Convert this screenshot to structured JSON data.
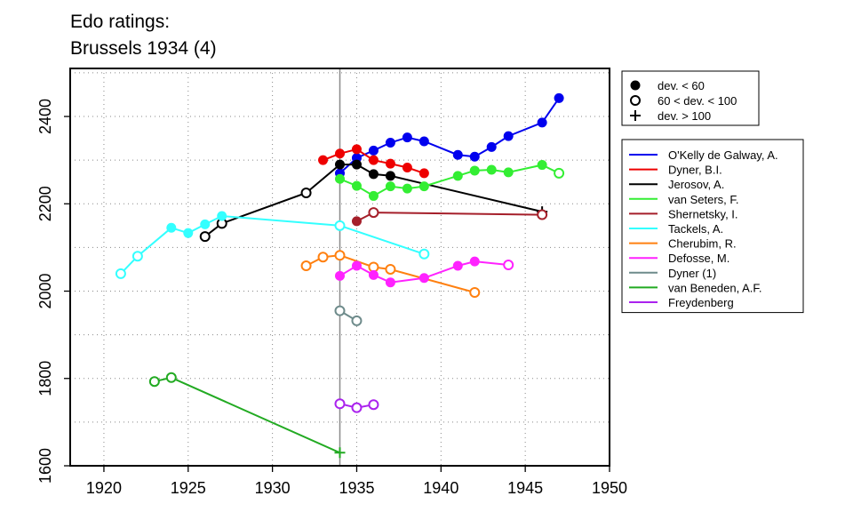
{
  "chart_data": {
    "type": "line",
    "title": "Edo ratings:",
    "subtitle": "Brussels 1934 (4)",
    "xlabel": "",
    "ylabel": "",
    "xlim": [
      1918,
      1950
    ],
    "ylim": [
      1600,
      2510
    ],
    "x_ticks": [
      1920,
      1925,
      1930,
      1935,
      1940,
      1945,
      1950
    ],
    "y_ticks": [
      1600,
      1800,
      2000,
      2200,
      2400
    ],
    "grid": "dotted",
    "event_year": 1934,
    "marker_legend": [
      {
        "marker": "filled",
        "label": "dev. < 60"
      },
      {
        "marker": "open",
        "label": "60 < dev. < 100"
      },
      {
        "marker": "plus",
        "label": "dev. > 100"
      }
    ],
    "series": [
      {
        "name": "O'Kelly de Galway, A.",
        "color": "#0000ee",
        "x": [
          1934,
          1935,
          1936,
          1937,
          1938,
          1939,
          1941,
          1942,
          1943,
          1944,
          1946,
          1947
        ],
        "y": [
          2270,
          2305,
          2322,
          2340,
          2352,
          2343,
          2312,
          2308,
          2330,
          2355,
          2386,
          2442
        ],
        "m": [
          "f",
          "f",
          "f",
          "f",
          "f",
          "f",
          "f",
          "f",
          "f",
          "f",
          "f",
          "f"
        ]
      },
      {
        "name": "Dyner, B.I.",
        "color": "#ee0000",
        "x": [
          1933,
          1934,
          1935,
          1936,
          1937,
          1938,
          1939
        ],
        "y": [
          2300,
          2315,
          2325,
          2300,
          2292,
          2283,
          2270
        ],
        "m": [
          "f",
          "f",
          "f",
          "f",
          "f",
          "f",
          "f"
        ]
      },
      {
        "name": "Jerosov, A.",
        "color": "#000000",
        "x": [
          1926,
          1927,
          1932,
          1934,
          1935,
          1936,
          1937,
          1946
        ],
        "y": [
          2125,
          2155,
          2225,
          2290,
          2290,
          2268,
          2264,
          2182
        ],
        "m": [
          "o",
          "o",
          "o",
          "f",
          "f",
          "f",
          "f",
          "p"
        ]
      },
      {
        "name": "van Seters, F.",
        "color": "#33ee33",
        "x": [
          1934,
          1935,
          1936,
          1937,
          1938,
          1939,
          1941,
          1942,
          1943,
          1944,
          1946,
          1947
        ],
        "y": [
          2257,
          2241,
          2218,
          2240,
          2235,
          2240,
          2264,
          2276,
          2278,
          2272,
          2289,
          2270
        ],
        "m": [
          "f",
          "f",
          "f",
          "f",
          "f",
          "f",
          "f",
          "f",
          "f",
          "f",
          "f",
          "o"
        ]
      },
      {
        "name": "Shernetsky, I.",
        "color": "#a51f2a",
        "x": [
          1935,
          1936,
          1946
        ],
        "y": [
          2160,
          2180,
          2175
        ],
        "m": [
          "f",
          "o",
          "o"
        ]
      },
      {
        "name": "Tackels, A.",
        "color": "#33ffff",
        "x": [
          1921,
          1922,
          1924,
          1925,
          1926,
          1927,
          1934,
          1939
        ],
        "y": [
          2040,
          2080,
          2145,
          2133,
          2153,
          2172,
          2150,
          2085
        ],
        "m": [
          "o",
          "o",
          "f",
          "f",
          "f",
          "f",
          "o",
          "o"
        ]
      },
      {
        "name": "Cherubim, R.",
        "color": "#ff8010",
        "x": [
          1932,
          1933,
          1934,
          1936,
          1937,
          1942
        ],
        "y": [
          2058,
          2078,
          2082,
          2055,
          2050,
          1997
        ],
        "m": [
          "o",
          "o",
          "o",
          "o",
          "o",
          "o"
        ]
      },
      {
        "name": "Defosse, M.",
        "color": "#ff22ff",
        "x": [
          1934,
          1935,
          1936,
          1937,
          1939,
          1941,
          1942,
          1944
        ],
        "y": [
          2035,
          2058,
          2037,
          2020,
          2030,
          2058,
          2068,
          2060
        ],
        "m": [
          "f",
          "f",
          "f",
          "f",
          "f",
          "f",
          "f",
          "o"
        ]
      },
      {
        "name": "Dyner (1)",
        "color": "#6e8b8b",
        "x": [
          1934,
          1935
        ],
        "y": [
          1955,
          1932
        ],
        "m": [
          "o",
          "o"
        ]
      },
      {
        "name": "van Beneden, A.F.",
        "color": "#22aa22",
        "x": [
          1923,
          1924,
          1934
        ],
        "y": [
          1793,
          1802,
          1630
        ],
        "m": [
          "o",
          "o",
          "p"
        ]
      },
      {
        "name": "Freydenberg",
        "color": "#aa22ee",
        "x": [
          1934,
          1935,
          1936
        ],
        "y": [
          1742,
          1733,
          1740
        ],
        "m": [
          "o",
          "o",
          "o"
        ]
      }
    ]
  }
}
